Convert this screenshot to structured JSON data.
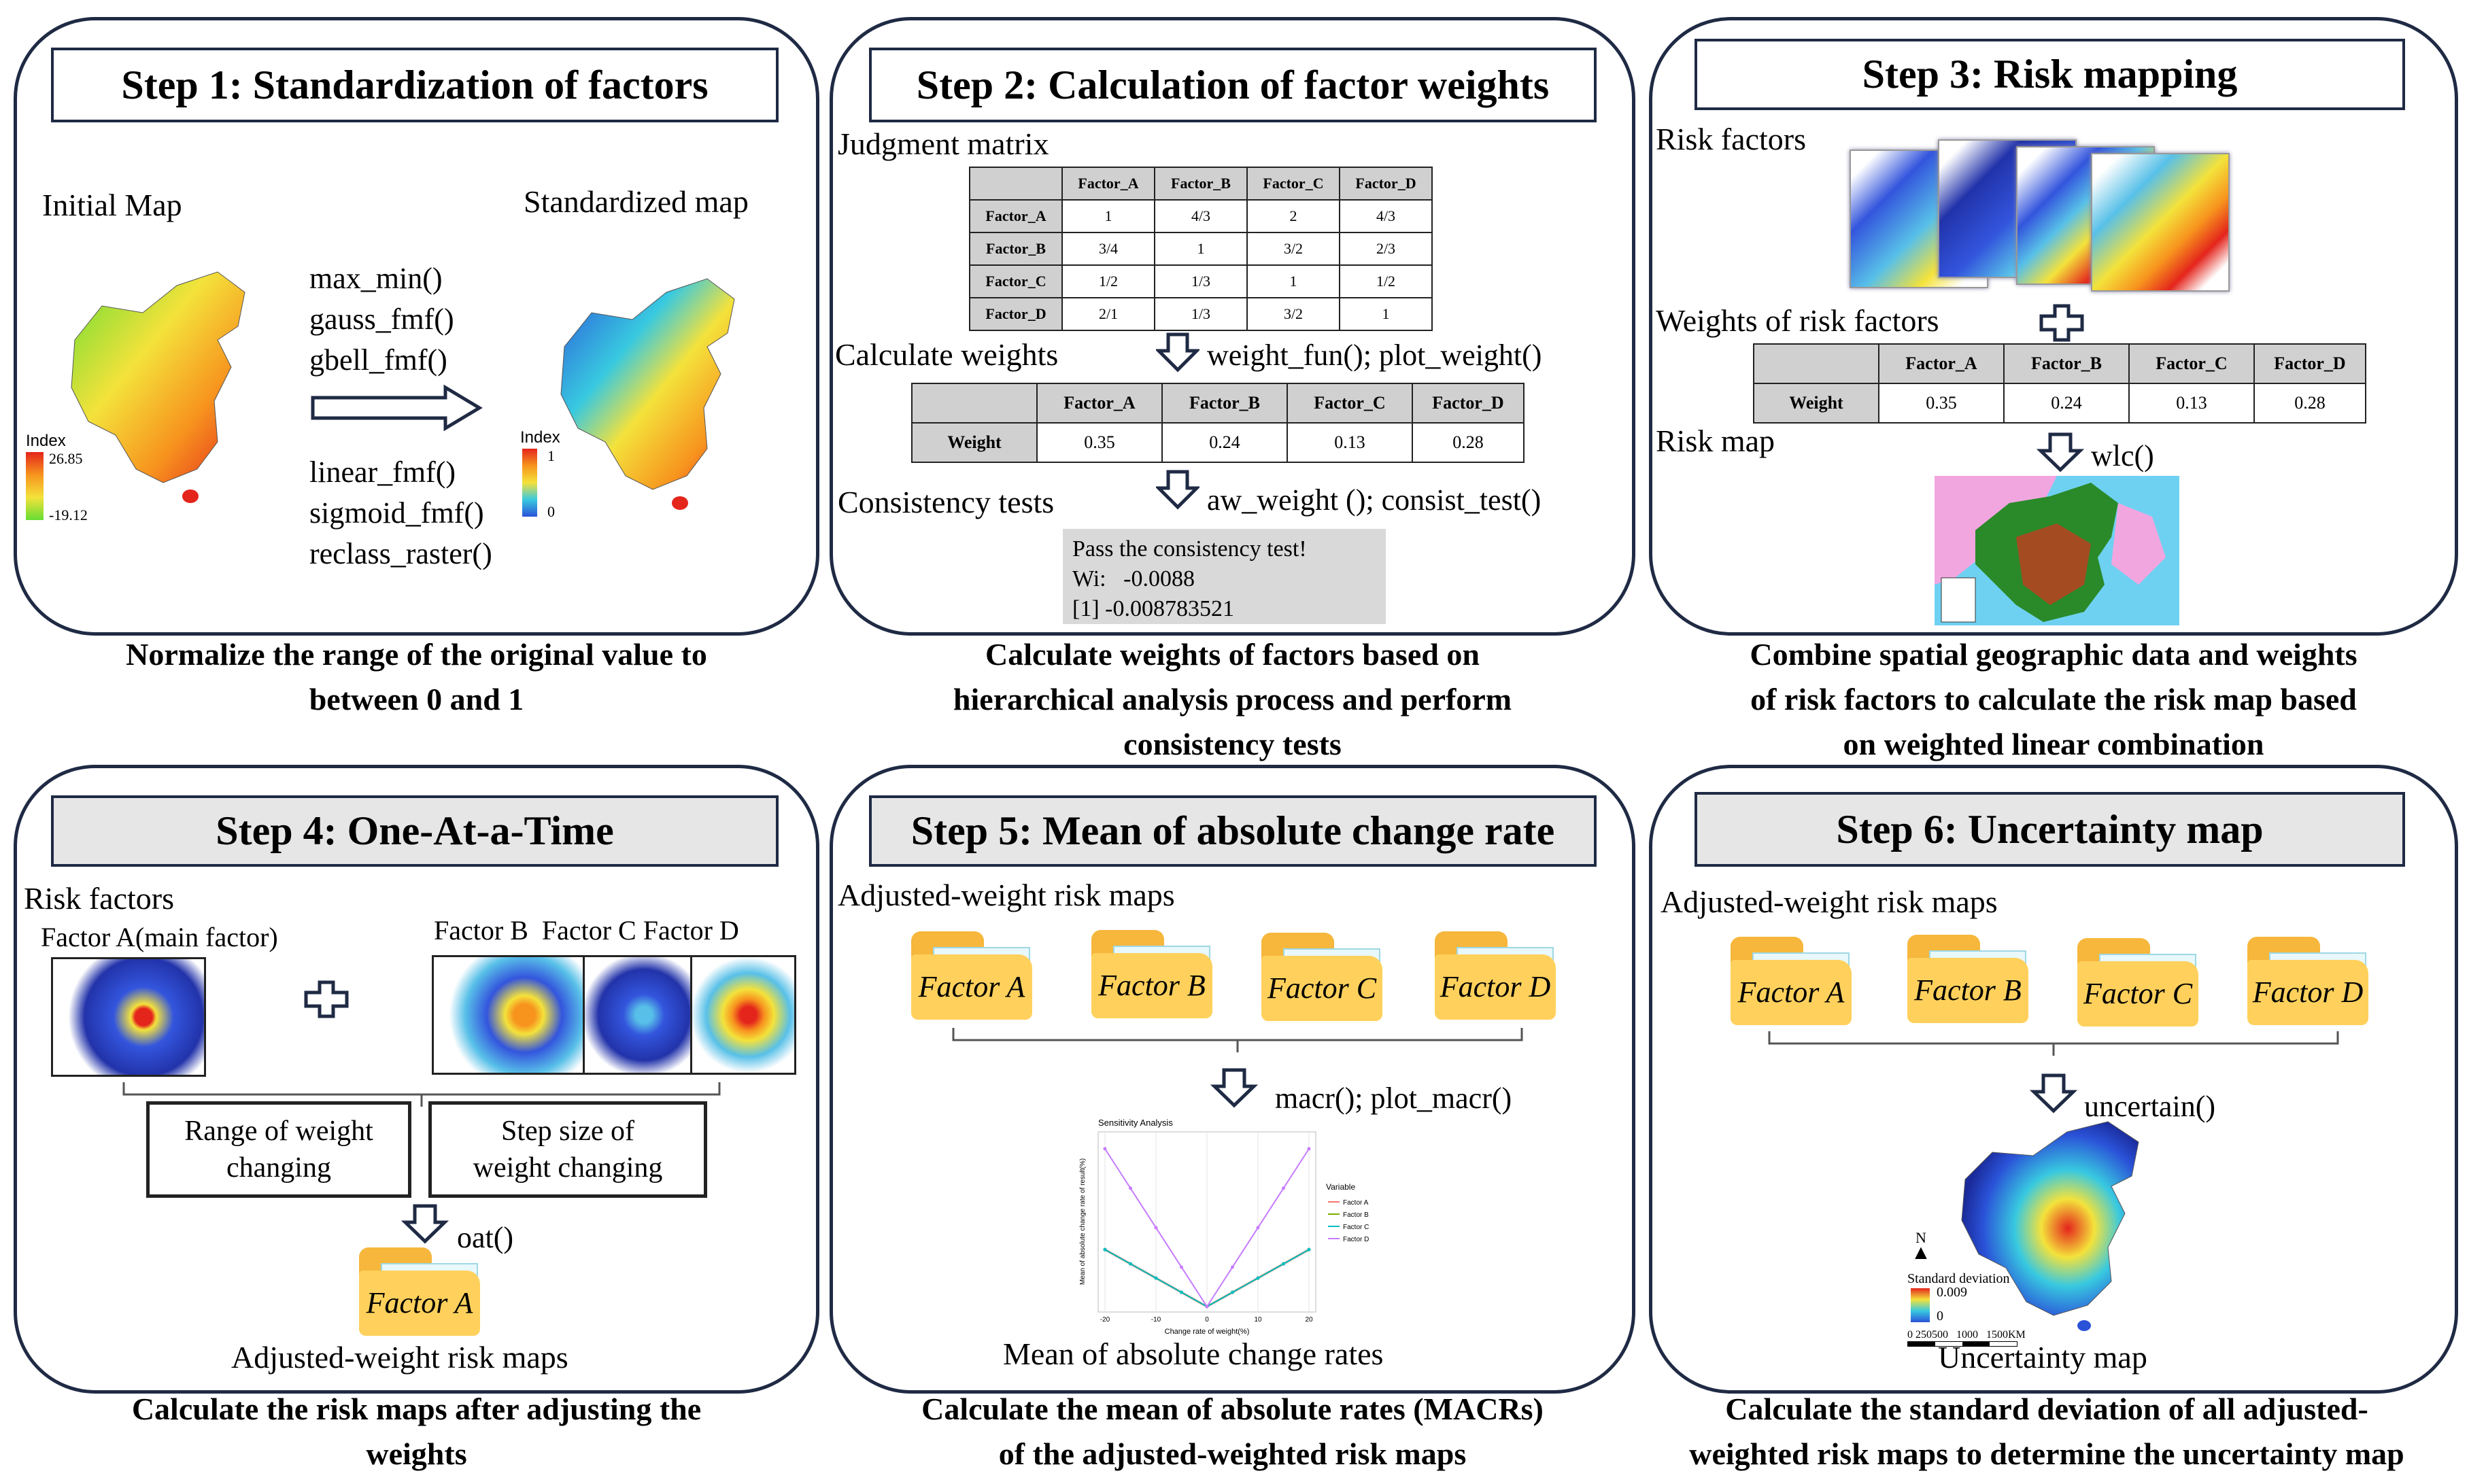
{
  "step1": {
    "title": "Step 1: Standardization of factors",
    "initial_label": "Initial Map",
    "standardized_label": "Standardized map",
    "functions_top": [
      "max_min()",
      "gauss_fmf()",
      "gbell_fmf()"
    ],
    "functions_bottom": [
      "linear_fmf()",
      "sigmoid_fmf()",
      "reclass_raster()"
    ],
    "legend_left": {
      "title": "Index",
      "max": "26.85",
      "min": "-19.12"
    },
    "legend_right": {
      "title": "Index",
      "max": "1",
      "min": "0"
    },
    "caption": [
      "Normalize the range of the original value to",
      "between 0 and 1"
    ]
  },
  "step2": {
    "title": "Step 2: Calculation of factor weights",
    "judgment_label": "Judgment matrix",
    "matrix_headers": [
      "",
      "Factor_A",
      "Factor_B",
      "Factor_C",
      "Factor_D"
    ],
    "matrix_rows": [
      [
        "Factor_A",
        "1",
        "4/3",
        "2",
        "4/3"
      ],
      [
        "Factor_B",
        "3/4",
        "1",
        "3/2",
        "2/3"
      ],
      [
        "Factor_C",
        "1/2",
        "1/3",
        "1",
        "1/2"
      ],
      [
        "Factor_D",
        "2/1",
        "1/3",
        "3/2",
        "1"
      ]
    ],
    "calc_label": "Calculate weights",
    "calc_fn": "weight_fun(); plot_weight()",
    "weights_headers": [
      "",
      "Factor_A",
      "Factor_B",
      "Factor_C",
      "Factor_D"
    ],
    "weights_row": [
      "Weight",
      "0.35",
      "0.24",
      "0.13",
      "0.28"
    ],
    "consistency_label": "Consistency tests",
    "consistency_fn": "aw_weight (); consist_test()",
    "console": [
      "Pass the consistency test!",
      "Wi:   -0.0088",
      "[1] -0.008783521"
    ],
    "caption": [
      "Calculate weights of factors based on",
      "hierarchical analysis process and perform",
      "consistency tests"
    ]
  },
  "step3": {
    "title": "Step 3: Risk mapping",
    "risk_factors_label": "Risk factors",
    "weights_label": "Weights of risk factors",
    "weights_headers": [
      "",
      "Factor_A",
      "Factor_B",
      "Factor_C",
      "Factor_D"
    ],
    "weights_row": [
      "Weight",
      "0.35",
      "0.24",
      "0.13",
      "0.28"
    ],
    "risk_map_label": "Risk map",
    "fn": "wlc()",
    "caption": [
      "Combine spatial geographic data and weights",
      "of risk factors to calculate the risk map based",
      "on weighted linear combination"
    ]
  },
  "step4": {
    "title": "Step 4: One-At-a-Time",
    "risk_factors_label": "Risk factors",
    "main_factor_label": "Factor A(main factor)",
    "other_factors_label": "Factor B  Factor C Factor D",
    "range_box": [
      "Range of weight",
      "changing"
    ],
    "step_box": [
      "Step size of",
      "weight changing"
    ],
    "fn": "oat()",
    "folder": "Factor A",
    "output_label": "Adjusted-weight risk maps",
    "caption": [
      "Calculate the risk maps after adjusting the",
      "weights"
    ]
  },
  "step5": {
    "title": "Step 5: Mean of absolute change rate",
    "input_label": "Adjusted-weight risk maps",
    "folders": [
      "Factor A",
      "Factor B",
      "Factor C",
      "Factor D"
    ],
    "fn": "macr(); plot_macr()",
    "chart_data": {
      "type": "line",
      "title": "Sensitivity Analysis",
      "xlabel": "Change rate of weight(%)",
      "ylabel": "Mean of absolute change rate of result(%)",
      "legend_title": "Variable",
      "legend_position": "right",
      "x": [
        -20,
        -15,
        -10,
        -5,
        0,
        5,
        10,
        15,
        20
      ],
      "xticks": [
        "-20",
        "-10",
        "0",
        "10",
        "20"
      ],
      "series": [
        {
          "name": "Factor A",
          "color": "#f8766d",
          "values": [
            13,
            9.75,
            6.5,
            3.25,
            0,
            3.25,
            6.5,
            9.75,
            13
          ]
        },
        {
          "name": "Factor B",
          "color": "#7cae00",
          "values": [
            13,
            9.75,
            6.5,
            3.25,
            0,
            3.25,
            6.5,
            9.75,
            13
          ]
        },
        {
          "name": "Factor C",
          "color": "#00bfc4",
          "values": [
            13,
            9.75,
            6.5,
            3.25,
            0,
            3.25,
            6.5,
            9.75,
            13
          ]
        },
        {
          "name": "Factor D",
          "color": "#c77cff",
          "values": [
            36,
            27,
            18,
            9,
            0,
            9,
            18,
            27,
            36
          ]
        }
      ],
      "ylim": [
        0,
        38
      ]
    },
    "output_label": "Mean of absolute change rates",
    "caption": [
      "Calculate the mean of absolute rates (MACRs)",
      "of the adjusted-weighted risk maps"
    ]
  },
  "step6": {
    "title": "Step 6: Uncertainty map",
    "input_label": "Adjusted-weight risk maps",
    "folders": [
      "Factor A",
      "Factor B",
      "Factor C",
      "Factor D"
    ],
    "fn": "uncertain()",
    "legend": {
      "north": "N",
      "title": "Standard deviation",
      "max": "0.009",
      "min": "0"
    },
    "scale": [
      "0",
      "250",
      "500",
      "1000",
      "1500",
      "KM"
    ],
    "output_label": "Uncertainty map",
    "caption": [
      "Calculate the standard deviation of all adjusted-",
      "weighted risk maps to determine the uncertainty map"
    ]
  },
  "colors": {
    "panel_border": "#1f2a44",
    "title_gray": "#e6e6e6",
    "folder_yellow": "#ffd15c",
    "folder_back": "#f6b73c"
  }
}
